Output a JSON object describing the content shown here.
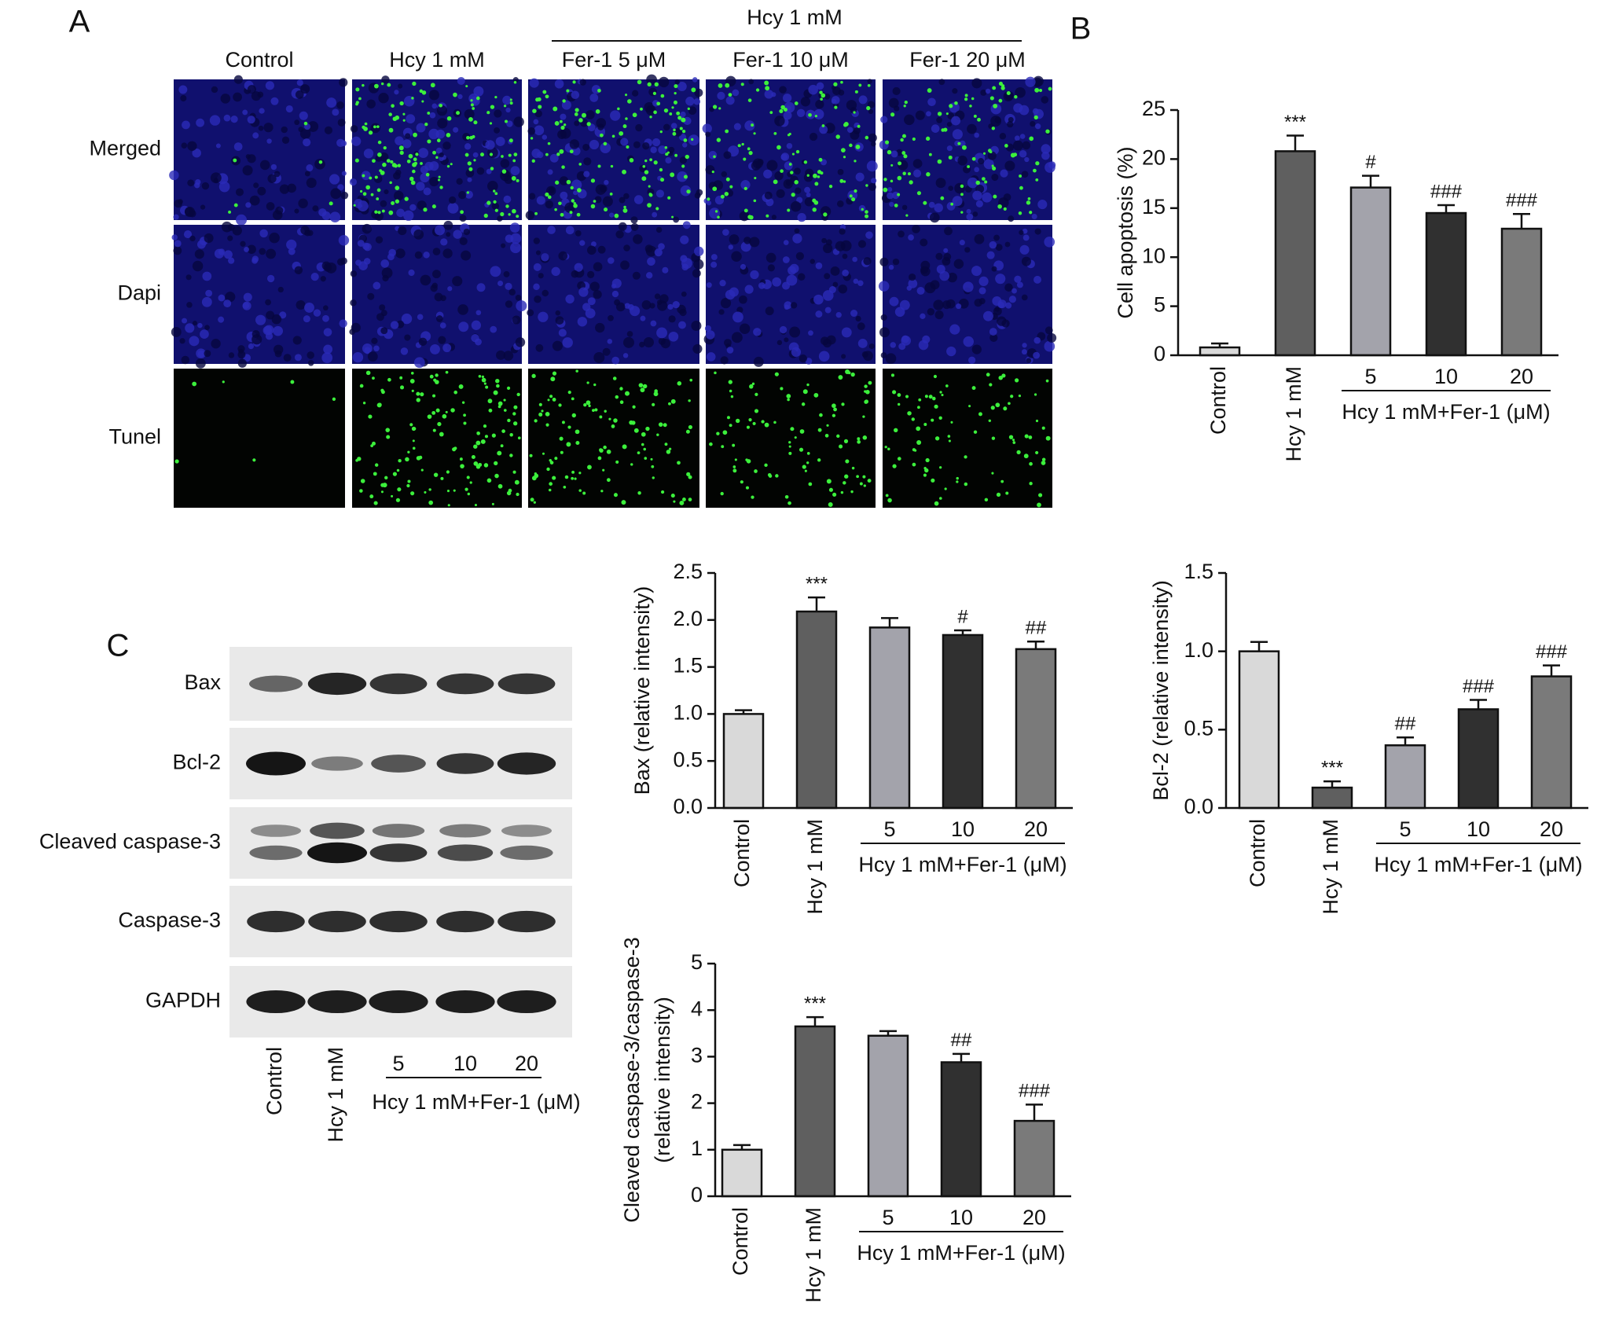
{
  "panel_labels": [
    "A",
    "B",
    "C"
  ],
  "microscopy": {
    "group_header": "Hcy 1 mM",
    "columns": [
      "Control",
      "Hcy 1 mM",
      "Fer-1 5 μM",
      "Fer-1 10 μM",
      "Fer-1 20 μM"
    ],
    "rows": [
      "Merged",
      "Dapi",
      "Tunel"
    ]
  },
  "western_blot": {
    "proteins": [
      "Bax",
      "Bcl-2",
      "Cleaved caspase-3",
      "Caspase-3",
      "GAPDH"
    ],
    "lanes": [
      "Control",
      "Hcy 1 mM",
      "5",
      "10",
      "20"
    ],
    "group_label": "Hcy 1 mM+Fer-1 (μM)"
  },
  "chart_data": [
    {
      "type": "bar",
      "ylabel": [
        "Cell apoptosis (%)"
      ],
      "categories": [
        "Control",
        "Hcy 1 mM",
        "5",
        "10",
        "20"
      ],
      "group_label": "Hcy 1 mM+Fer-1 (μM)",
      "values": [
        0.8,
        20.8,
        17.1,
        14.5,
        12.9
      ],
      "errors": [
        0.4,
        1.6,
        1.2,
        0.8,
        1.5
      ],
      "annotations": [
        null,
        "***",
        "#",
        "###",
        "###"
      ],
      "colors": [
        "#d9d9d9",
        "#5f5f5f",
        "#a3a3ab",
        "#303030",
        "#7a7a7a"
      ],
      "ylim": [
        0,
        25
      ],
      "yticks": [
        0,
        5,
        10,
        15,
        20,
        25
      ]
    },
    {
      "type": "bar",
      "ylabel": [
        "Bax (relative intensity)"
      ],
      "categories": [
        "Control",
        "Hcy 1 mM",
        "5",
        "10",
        "20"
      ],
      "group_label": "Hcy 1 mM+Fer-1 (μM)",
      "values": [
        1.0,
        2.09,
        1.92,
        1.84,
        1.69
      ],
      "errors": [
        0.04,
        0.15,
        0.1,
        0.05,
        0.08
      ],
      "annotations": [
        null,
        "***",
        null,
        "#",
        "##"
      ],
      "colors": [
        "#d9d9d9",
        "#5f5f5f",
        "#a3a3ab",
        "#303030",
        "#7a7a7a"
      ],
      "ylim": [
        0,
        2.5
      ],
      "yticks": [
        {
          "value": 0,
          "label": "0.0"
        },
        0.5,
        {
          "value": 1,
          "label": "1.0"
        },
        1.5,
        {
          "value": 2,
          "label": "2.0"
        },
        2.5
      ]
    },
    {
      "type": "bar",
      "ylabel": [
        "Bcl-2 (relative intensity)"
      ],
      "categories": [
        "Control",
        "Hcy 1 mM",
        "5",
        "10",
        "20"
      ],
      "group_label": "Hcy 1 mM+Fer-1 (μM)",
      "values": [
        1.0,
        0.13,
        0.4,
        0.63,
        0.84
      ],
      "errors": [
        0.06,
        0.04,
        0.05,
        0.06,
        0.07
      ],
      "annotations": [
        null,
        "***",
        "##",
        "###",
        "###"
      ],
      "colors": [
        "#d9d9d9",
        "#5f5f5f",
        "#a3a3ab",
        "#303030",
        "#7a7a7a"
      ],
      "ylim": [
        0,
        1.5
      ],
      "yticks": [
        {
          "value": 0,
          "label": "0.0"
        },
        0.5,
        {
          "value": 1,
          "label": "1.0"
        },
        1.5
      ]
    },
    {
      "type": "bar",
      "ylabel": [
        "Cleaved caspase-3/caspase-3",
        "(relative intensity)"
      ],
      "categories": [
        "Control",
        "Hcy 1 mM",
        "5",
        "10",
        "20"
      ],
      "group_label": "Hcy 1 mM+Fer-1 (μM)",
      "values": [
        1.0,
        3.65,
        3.45,
        2.88,
        1.62
      ],
      "errors": [
        0.1,
        0.2,
        0.1,
        0.18,
        0.35
      ],
      "annotations": [
        null,
        "***",
        null,
        "##",
        "###"
      ],
      "colors": [
        "#d9d9d9",
        "#5f5f5f",
        "#a3a3ab",
        "#303030",
        "#7a7a7a"
      ],
      "ylim": [
        0,
        5
      ],
      "yticks": [
        0,
        1,
        2,
        3,
        4,
        5
      ]
    }
  ]
}
